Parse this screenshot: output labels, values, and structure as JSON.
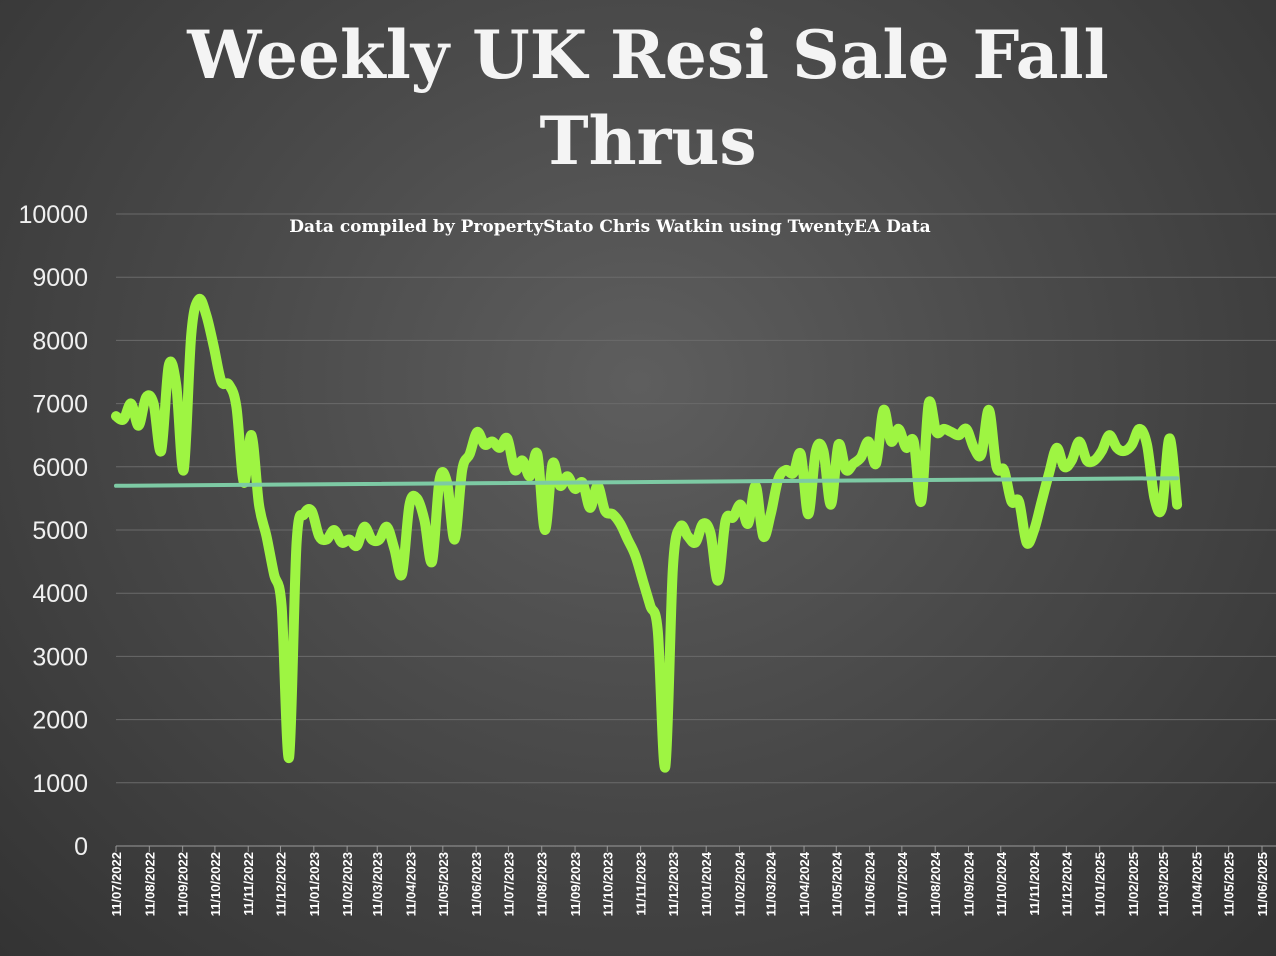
{
  "chart_data": {
    "type": "line",
    "title_lines": [
      "Weekly UK Resi Sale Fall",
      "Thrus"
    ],
    "subtitle": "Data compiled by PropertyStato Chris Watkin using TwentyEA Data",
    "xlabel": "",
    "ylabel": "",
    "ylim": [
      0,
      10000
    ],
    "y_ticks": [
      "10000",
      "9000",
      "8000",
      "7000",
      "6000",
      "5000",
      "4000",
      "3000",
      "2000",
      "1000",
      "0"
    ],
    "x_ticks": [
      "11/07/2022",
      "11/08/2022",
      "11/09/2022",
      "11/10/2022",
      "11/11/2022",
      "11/12/2022",
      "11/01/2023",
      "11/02/2023",
      "11/03/2023",
      "11/04/2023",
      "11/05/2023",
      "11/06/2023",
      "11/07/2023",
      "11/08/2023",
      "11/09/2023",
      "11/10/2023",
      "11/11/2023",
      "11/12/2023",
      "11/01/2024",
      "11/02/2024",
      "11/03/2024",
      "11/04/2024",
      "11/05/2024",
      "11/06/2024",
      "11/07/2024",
      "11/08/2024",
      "11/09/2024",
      "11/10/2024",
      "11/11/2024",
      "11/12/2024",
      "11/01/2025",
      "11/02/2025",
      "11/03/2025",
      "11/04/2025",
      "11/05/2025",
      "11/06/2025"
    ],
    "grid": true,
    "legend": "none",
    "series": [
      {
        "color": "#9ef542",
        "points": [
          [
            "2022-07-11",
            6800
          ],
          [
            "2022-07-18",
            6750
          ],
          [
            "2022-07-25",
            7000
          ],
          [
            "2022-08-01",
            6650
          ],
          [
            "2022-08-08",
            7100
          ],
          [
            "2022-08-15",
            7000
          ],
          [
            "2022-08-22",
            6250
          ],
          [
            "2022-08-29",
            7600
          ],
          [
            "2022-09-05",
            7300
          ],
          [
            "2022-09-12",
            5950
          ],
          [
            "2022-09-19",
            8100
          ],
          [
            "2022-09-26",
            8650
          ],
          [
            "2022-10-03",
            8400
          ],
          [
            "2022-10-10",
            7900
          ],
          [
            "2022-10-17",
            7350
          ],
          [
            "2022-10-24",
            7300
          ],
          [
            "2022-10-31",
            6950
          ],
          [
            "2022-11-07",
            5750
          ],
          [
            "2022-11-14",
            6500
          ],
          [
            "2022-11-21",
            5400
          ],
          [
            "2022-11-28",
            4900
          ],
          [
            "2022-12-05",
            4300
          ],
          [
            "2022-12-12",
            3800
          ],
          [
            "2022-12-19",
            1400
          ],
          [
            "2022-12-26",
            4800
          ],
          [
            "2023-01-02",
            5250
          ],
          [
            "2023-01-09",
            5300
          ],
          [
            "2023-01-16",
            4900
          ],
          [
            "2023-01-23",
            4850
          ],
          [
            "2023-01-30",
            5000
          ],
          [
            "2023-02-06",
            4800
          ],
          [
            "2023-02-13",
            4850
          ],
          [
            "2023-02-20",
            4750
          ],
          [
            "2023-02-27",
            5050
          ],
          [
            "2023-03-06",
            4850
          ],
          [
            "2023-03-13",
            4850
          ],
          [
            "2023-03-20",
            5050
          ],
          [
            "2023-03-27",
            4700
          ],
          [
            "2023-04-03",
            4300
          ],
          [
            "2023-04-10",
            5400
          ],
          [
            "2023-04-17",
            5500
          ],
          [
            "2023-04-24",
            5150
          ],
          [
            "2023-05-01",
            4500
          ],
          [
            "2023-05-08",
            5800
          ],
          [
            "2023-05-15",
            5750
          ],
          [
            "2023-05-22",
            4850
          ],
          [
            "2023-05-29",
            5950
          ],
          [
            "2023-06-05",
            6200
          ],
          [
            "2023-06-12",
            6550
          ],
          [
            "2023-06-19",
            6350
          ],
          [
            "2023-06-26",
            6400
          ],
          [
            "2023-07-03",
            6300
          ],
          [
            "2023-07-10",
            6450
          ],
          [
            "2023-07-17",
            5950
          ],
          [
            "2023-07-24",
            6100
          ],
          [
            "2023-07-31",
            5850
          ],
          [
            "2023-08-07",
            6200
          ],
          [
            "2023-08-14",
            5000
          ],
          [
            "2023-08-21",
            6050
          ],
          [
            "2023-08-28",
            5700
          ],
          [
            "2023-09-04",
            5850
          ],
          [
            "2023-09-11",
            5650
          ],
          [
            "2023-09-18",
            5750
          ],
          [
            "2023-09-25",
            5350
          ],
          [
            "2023-10-02",
            5700
          ],
          [
            "2023-10-09",
            5300
          ],
          [
            "2023-10-16",
            5250
          ],
          [
            "2023-10-23",
            5100
          ],
          [
            "2023-10-30",
            4850
          ],
          [
            "2023-11-06",
            4600
          ],
          [
            "2023-11-13",
            4200
          ],
          [
            "2023-11-20",
            3800
          ],
          [
            "2023-11-27",
            3400
          ],
          [
            "2023-12-04",
            1250
          ],
          [
            "2023-12-11",
            4400
          ],
          [
            "2023-12-18",
            5050
          ],
          [
            "2023-12-25",
            4900
          ],
          [
            "2024-01-01",
            4800
          ],
          [
            "2024-01-08",
            5100
          ],
          [
            "2024-01-15",
            4950
          ],
          [
            "2024-01-22",
            4200
          ],
          [
            "2024-01-29",
            5150
          ],
          [
            "2024-02-05",
            5200
          ],
          [
            "2024-02-12",
            5400
          ],
          [
            "2024-02-19",
            5100
          ],
          [
            "2024-02-26",
            5700
          ],
          [
            "2024-03-04",
            4900
          ],
          [
            "2024-03-11",
            5250
          ],
          [
            "2024-03-18",
            5800
          ],
          [
            "2024-03-25",
            5950
          ],
          [
            "2024-04-01",
            5900
          ],
          [
            "2024-04-08",
            6200
          ],
          [
            "2024-04-15",
            5250
          ],
          [
            "2024-04-22",
            6250
          ],
          [
            "2024-04-29",
            6250
          ],
          [
            "2024-05-06",
            5400
          ],
          [
            "2024-05-13",
            6350
          ],
          [
            "2024-05-20",
            5950
          ],
          [
            "2024-05-27",
            6050
          ],
          [
            "2024-06-03",
            6150
          ],
          [
            "2024-06-10",
            6400
          ],
          [
            "2024-06-17",
            6050
          ],
          [
            "2024-06-24",
            6900
          ],
          [
            "2024-07-01",
            6400
          ],
          [
            "2024-07-08",
            6600
          ],
          [
            "2024-07-15",
            6300
          ],
          [
            "2024-07-22",
            6400
          ],
          [
            "2024-07-29",
            5450
          ],
          [
            "2024-08-05",
            7000
          ],
          [
            "2024-08-12",
            6550
          ],
          [
            "2024-08-19",
            6600
          ],
          [
            "2024-08-26",
            6550
          ],
          [
            "2024-09-02",
            6500
          ],
          [
            "2024-09-09",
            6600
          ],
          [
            "2024-09-16",
            6300
          ],
          [
            "2024-09-23",
            6200
          ],
          [
            "2024-09-30",
            6900
          ],
          [
            "2024-10-07",
            6000
          ],
          [
            "2024-10-14",
            5950
          ],
          [
            "2024-10-21",
            5450
          ],
          [
            "2024-10-28",
            5450
          ],
          [
            "2024-11-04",
            4800
          ],
          [
            "2024-11-11",
            5000
          ],
          [
            "2024-11-18",
            5450
          ],
          [
            "2024-11-25",
            5900
          ],
          [
            "2024-12-02",
            6300
          ],
          [
            "2024-12-09",
            6000
          ],
          [
            "2024-12-16",
            6100
          ],
          [
            "2024-12-23",
            6400
          ],
          [
            "2024-12-30",
            6100
          ],
          [
            "2025-01-06",
            6100
          ],
          [
            "2025-01-13",
            6250
          ],
          [
            "2025-01-20",
            6500
          ],
          [
            "2025-01-27",
            6300
          ],
          [
            "2025-02-03",
            6250
          ],
          [
            "2025-02-10",
            6350
          ],
          [
            "2025-02-17",
            6600
          ],
          [
            "2025-02-24",
            6350
          ],
          [
            "2025-03-03",
            5500
          ],
          [
            "2025-03-10",
            5350
          ],
          [
            "2025-03-17",
            6450
          ],
          [
            "2025-03-24",
            5400
          ]
        ]
      },
      {
        "type": "trendline",
        "color": "#7dcaa4",
        "points": [
          [
            "2022-07-11",
            5700
          ],
          [
            "2025-03-24",
            5820
          ]
        ]
      }
    ]
  }
}
